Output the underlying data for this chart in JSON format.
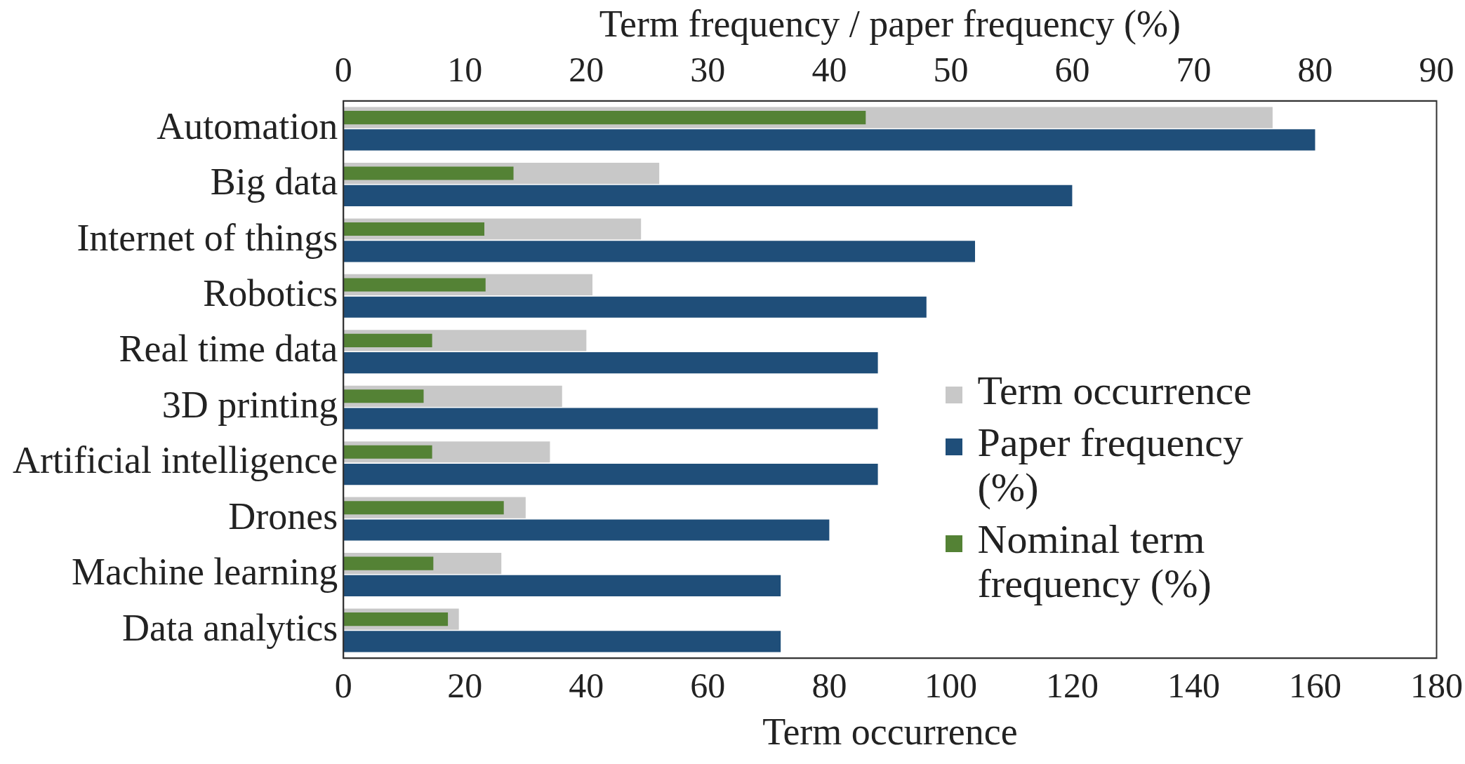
{
  "chart_data": {
    "type": "bar",
    "orientation": "horizontal",
    "x2label": "Term frequency / paper frequency (%)",
    "xlabel": "Term occurrence",
    "categories": [
      "Automation",
      "Big data",
      "Internet of things",
      "Robotics",
      "Real time data",
      "3D printing",
      "Artificial intelligence",
      "Drones",
      "Machine learning",
      "Data analytics"
    ],
    "series": [
      {
        "name": "Term occurrence",
        "color": "#c8c8c8",
        "values": [
          153,
          52,
          49,
          41,
          40,
          36,
          34,
          30,
          26,
          19
        ]
      },
      {
        "name": "Paper frequency (%)",
        "color": "#1f4e79",
        "axis": "x2",
        "values": [
          80,
          60,
          52,
          48,
          44,
          44,
          44,
          40,
          36,
          36
        ]
      },
      {
        "name": "Nominal term frequency (%)",
        "color": "#548235",
        "axis": "x2",
        "values": [
          43,
          14,
          11.6,
          11.7,
          7.3,
          6.6,
          7.3,
          13.2,
          7.4,
          8.6
        ]
      }
    ],
    "xlim": [
      0,
      180
    ],
    "xticks": [
      0,
      20,
      40,
      60,
      80,
      100,
      120,
      140,
      160,
      180
    ],
    "x2lim": [
      0,
      90
    ],
    "x2ticks": [
      0,
      10,
      20,
      30,
      40,
      50,
      60,
      70,
      80,
      90
    ],
    "grid": false,
    "legend": "right"
  }
}
